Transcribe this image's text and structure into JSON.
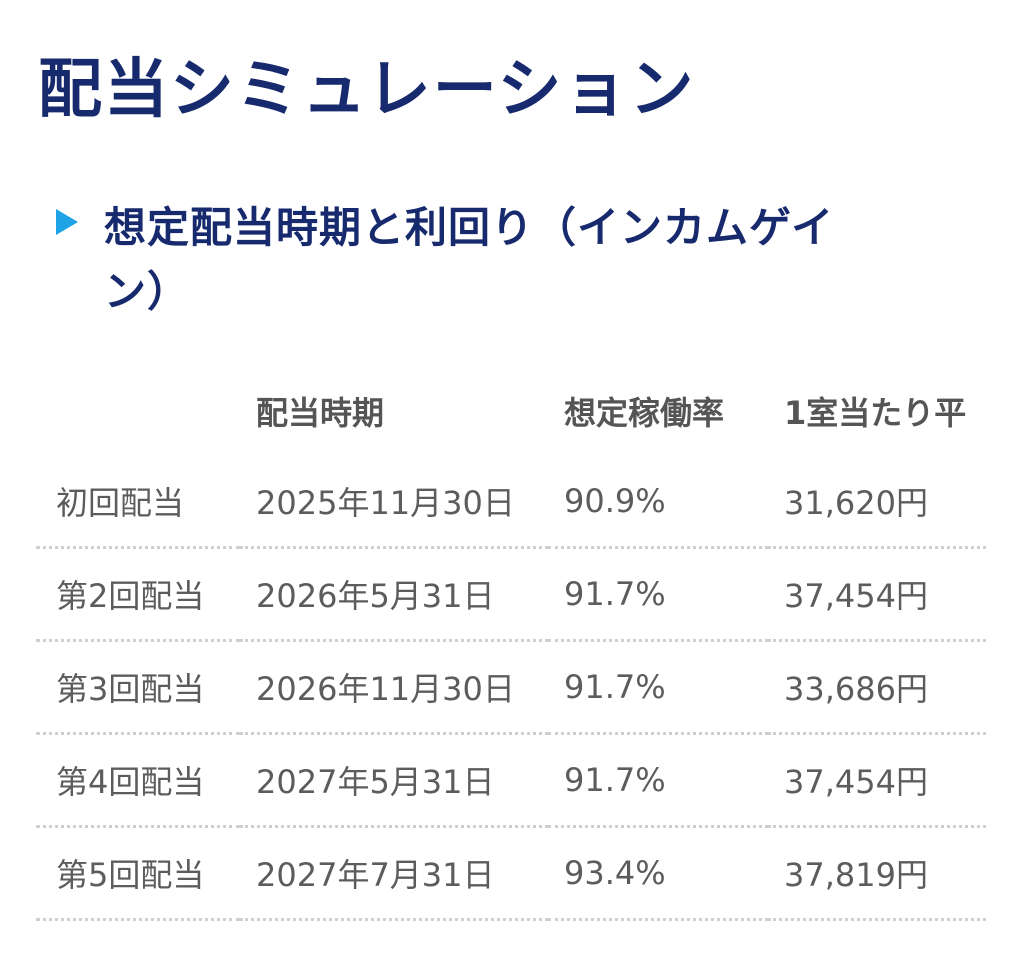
{
  "page": {
    "title": "配当シミュレーション"
  },
  "section": {
    "heading": "想定配当時期と利回り（インカムゲイン）",
    "arrow_icon": "triangle-right-icon",
    "arrow_color": "#1ea3e6",
    "heading_color": "#172a6e"
  },
  "table": {
    "headers": [
      "",
      "配当時期",
      "想定稼働率",
      "1室当たり平"
    ],
    "rows": [
      {
        "label": "初回配当",
        "date": "2025年11月30日",
        "rate": "90.9%",
        "amount": "31,620円"
      },
      {
        "label": "第2回配当",
        "date": "2026年5月31日",
        "rate": "91.7%",
        "amount": "37,454円"
      },
      {
        "label": "第3回配当",
        "date": "2026年11月30日",
        "rate": "91.7%",
        "amount": "33,686円"
      },
      {
        "label": "第4回配当",
        "date": "2027年5月31日",
        "rate": "91.7%",
        "amount": "37,454円"
      },
      {
        "label": "第5回配当",
        "date": "2027年7月31日",
        "rate": "93.4%",
        "amount": "37,819円"
      }
    ]
  }
}
